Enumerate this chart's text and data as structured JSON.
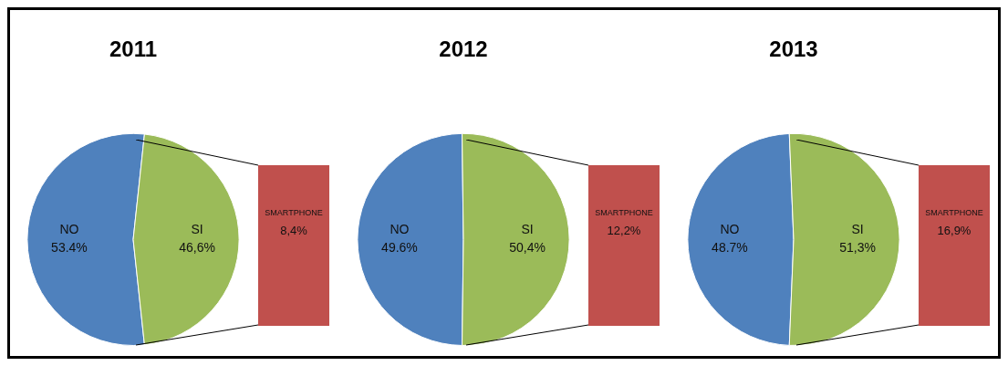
{
  "chart_data": [
    {
      "type": "pie",
      "title": "2011",
      "categories": [
        "NO",
        "SI"
      ],
      "values": [
        53.4,
        46.6
      ],
      "value_labels": [
        "53.4%",
        "46,6%"
      ],
      "colors": [
        "#4f81bd",
        "#9bbb59"
      ]
    },
    {
      "type": "other",
      "categories": [
        "SMARTPHONE"
      ],
      "values": [
        8.4
      ],
      "value_labels": [
        "8,4%"
      ],
      "color": "#c0504d"
    },
    {
      "type": "pie",
      "title": "2012",
      "categories": [
        "NO",
        "SI"
      ],
      "values": [
        49.6,
        50.4
      ],
      "value_labels": [
        "49.6%",
        "50,4%"
      ],
      "colors": [
        "#4f81bd",
        "#9bbb59"
      ]
    },
    {
      "type": "other",
      "categories": [
        "SMARTPHONE"
      ],
      "values": [
        12.2
      ],
      "value_labels": [
        "12,2%"
      ],
      "color": "#c0504d"
    },
    {
      "type": "pie",
      "title": "2013",
      "categories": [
        "NO",
        "SI"
      ],
      "values": [
        48.7,
        51.3
      ],
      "value_labels": [
        "48.7%",
        "51,3%"
      ],
      "colors": [
        "#4f81bd",
        "#9bbb59"
      ]
    },
    {
      "type": "other",
      "categories": [
        "SMARTPHONE"
      ],
      "values": [
        16.9
      ],
      "value_labels": [
        "16,9%"
      ],
      "color": "#c0504d"
    }
  ]
}
